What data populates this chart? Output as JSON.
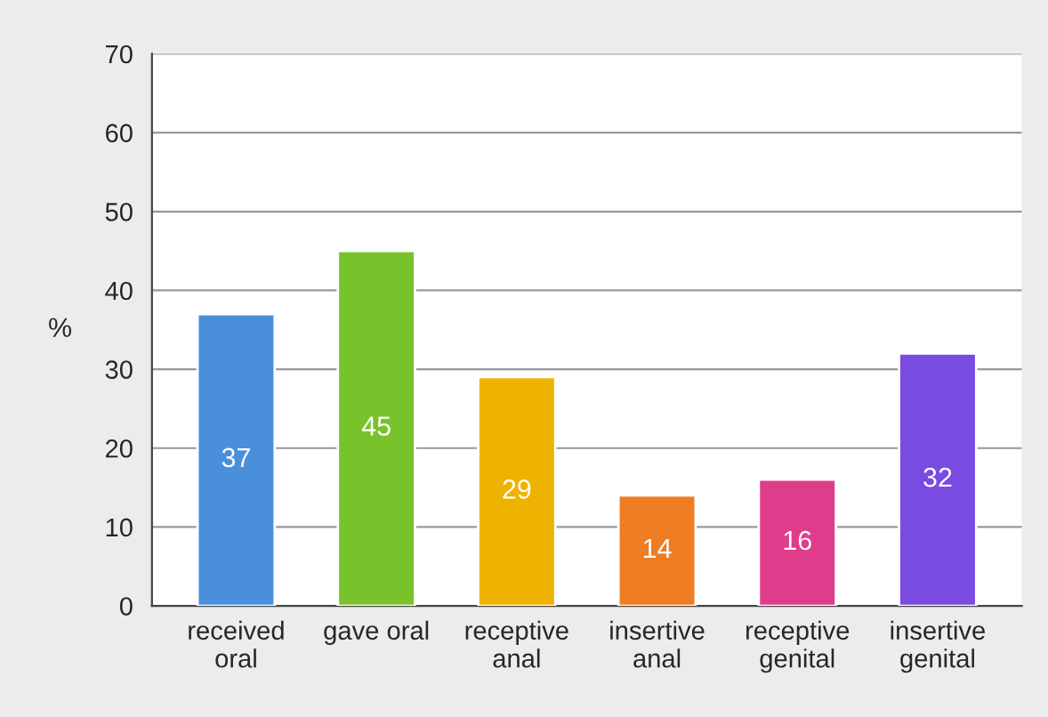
{
  "chart_data": {
    "type": "bar",
    "ylabel": "%",
    "categories": [
      "received\noral",
      "gave oral",
      "receptive\nanal",
      "insertive\nanal",
      "receptive\ngenital",
      "insertive\ngenital"
    ],
    "values": [
      37,
      45,
      29,
      14,
      16,
      32
    ],
    "colors": [
      "#4a8fdc",
      "#78c32c",
      "#eeb200",
      "#ef7d22",
      "#df3c8c",
      "#7a4be0"
    ],
    "ylim": [
      0,
      70
    ],
    "yticks": [
      0,
      10,
      20,
      30,
      40,
      50,
      60,
      70
    ],
    "grid": "y",
    "data_labels": true
  }
}
